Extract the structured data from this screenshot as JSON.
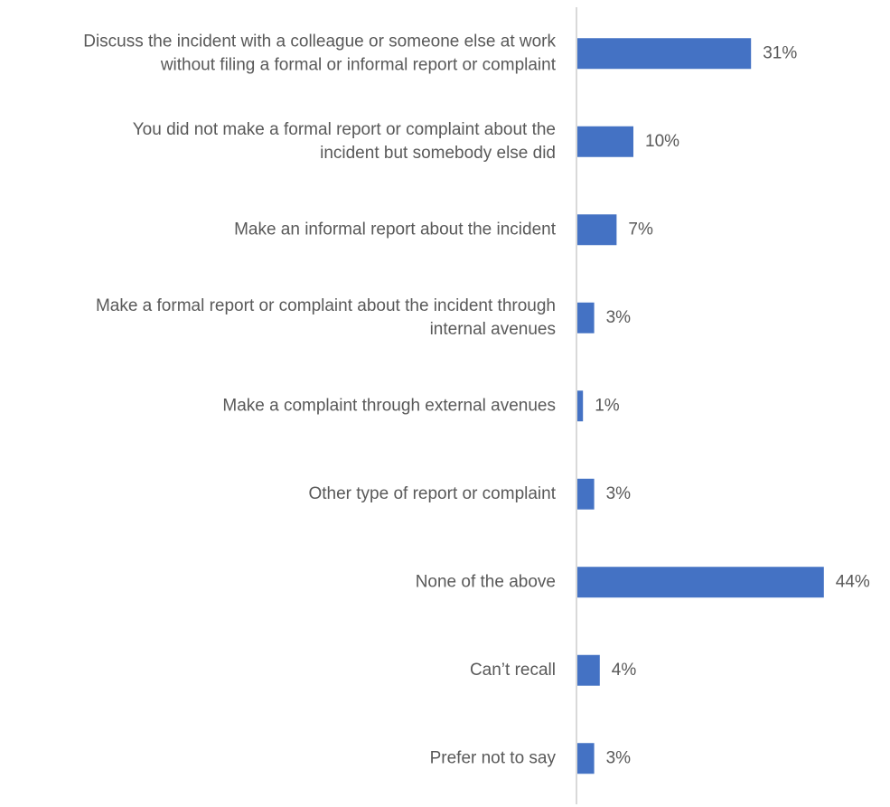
{
  "chart_data": {
    "type": "bar",
    "orientation": "horizontal",
    "categories": [
      [
        "Discuss the incident with a colleague or someone else at work",
        "without filing a formal or informal report or complaint"
      ],
      [
        "You did not make a formal report or complaint about the",
        "incident but somebody else did"
      ],
      [
        "Make an informal report about the incident"
      ],
      [
        "Make a formal report or complaint about the incident through",
        "internal avenues"
      ],
      [
        "Make a complaint through external avenues"
      ],
      [
        "Other type of report or complaint"
      ],
      [
        "None of the above"
      ],
      [
        "Can’t recall"
      ],
      [
        "Prefer not to say"
      ]
    ],
    "values": [
      31,
      10,
      7,
      3,
      1,
      3,
      44,
      4,
      3
    ],
    "value_labels": [
      "31%",
      "10%",
      "7%",
      "3%",
      "1%",
      "3%",
      "44%",
      "4%",
      "3%"
    ],
    "title": "",
    "xlabel": "",
    "ylabel": "",
    "xlim": [
      0,
      44
    ],
    "grid": false,
    "legend": "none",
    "bar_color": "#4472C4",
    "axis_color": "#D9D9D9",
    "text_color": "#595959"
  }
}
